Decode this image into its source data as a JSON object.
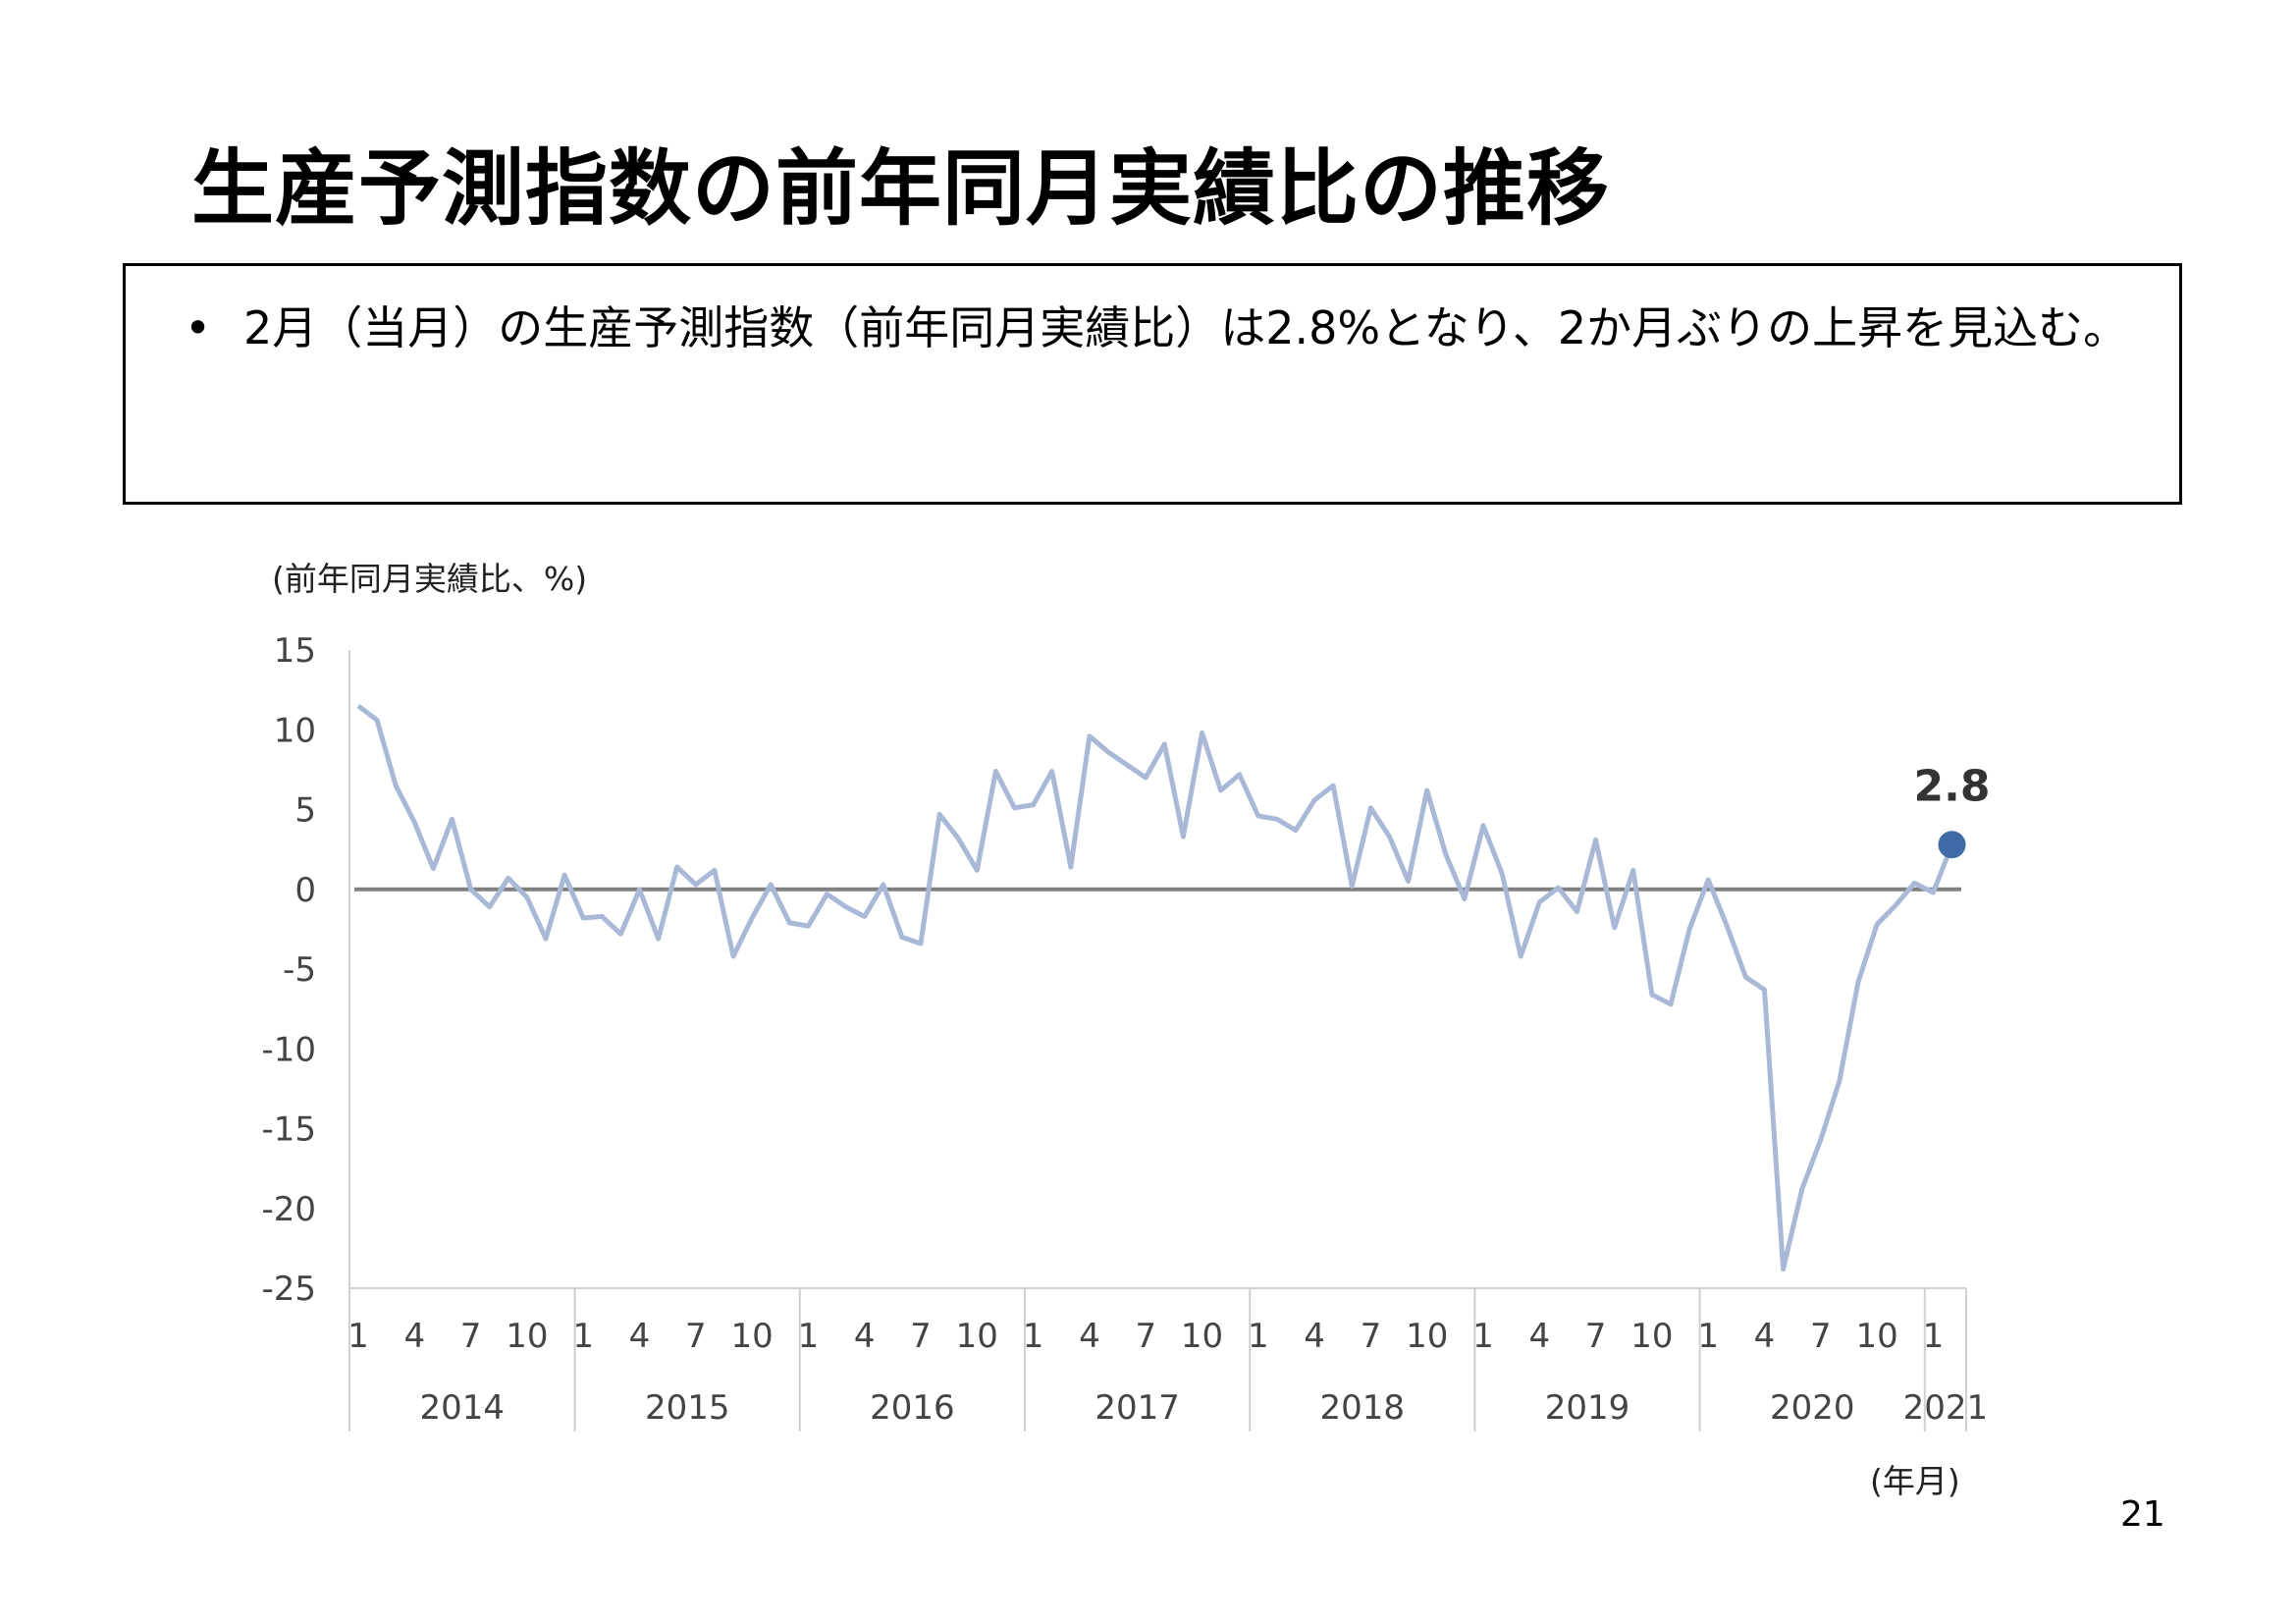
{
  "title": "生産予測指数の前年同月実績比の推移",
  "summary": {
    "bullet": "•",
    "text": "2月（当月）の生産予測指数（前年同月実績比）は2.8%となり、2か月ぶりの上昇を見込む。"
  },
  "page_number": "21",
  "chart_data": {
    "type": "line",
    "ylabel": "(前年同月実績比、%)",
    "xlabel": "(年月)",
    "ylim": [
      -25,
      15
    ],
    "yticks": [
      15,
      10,
      5,
      0,
      -5,
      -10,
      -15,
      -20,
      -25
    ],
    "grid": false,
    "zero_line": true,
    "month_tick_labels": [
      "1",
      "4",
      "7",
      "10"
    ],
    "years": [
      "2014",
      "2015",
      "2016",
      "2017",
      "2018",
      "2019",
      "2020",
      "2021"
    ],
    "x_start": "2014-01",
    "x_end": "2021-02",
    "line_color": "#a9b8d6",
    "zero_line_color": "#808080",
    "highlight_color": "#3f6aa6",
    "highlight": {
      "x": "2021-02",
      "value": 2.8,
      "label": "2.8"
    },
    "series": [
      {
        "values": [
          11.5,
          10.6,
          6.5,
          4.2,
          1.3,
          4.4,
          0.0,
          -1.1,
          0.7,
          -0.5,
          -3.1,
          0.9,
          -1.8,
          -1.7,
          -2.8,
          0.0,
          -3.1,
          1.4,
          0.3,
          1.2,
          -4.2,
          -1.8,
          0.3,
          -2.1,
          -2.3,
          -0.3,
          -1.1,
          -1.7,
          0.3,
          -3.0,
          -3.4,
          4.7,
          3.2,
          1.2,
          7.4,
          5.1,
          5.3,
          7.4,
          1.4,
          9.6,
          8.6,
          7.8,
          7.0,
          9.1,
          3.3,
          9.8,
          6.2,
          7.2,
          4.6,
          4.4,
          3.7,
          5.6,
          6.5,
          0.2,
          5.1,
          3.3,
          0.5,
          6.2,
          2.2,
          -0.6,
          4.0,
          1.0,
          -4.2,
          -0.8,
          0.1,
          -1.4,
          3.1,
          -2.4,
          1.2,
          -6.6,
          -7.2,
          -2.5,
          0.6,
          -2.3,
          -5.5,
          -6.3,
          -23.8,
          -18.8,
          -15.7,
          -12.0,
          -5.8,
          -2.2,
          -1.0,
          0.4,
          -0.2,
          2.8
        ]
      }
    ]
  }
}
